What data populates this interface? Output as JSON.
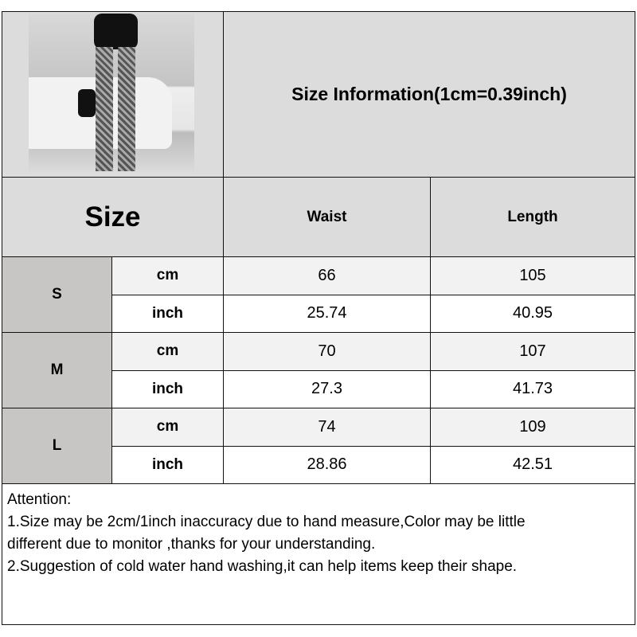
{
  "title": "Size Information(1cm=0.39inch)",
  "header": {
    "size": "Size",
    "waist": "Waist",
    "length": "Length"
  },
  "sizes": [
    {
      "label": "S",
      "cm": {
        "unit": "cm",
        "waist": "66",
        "length": "105"
      },
      "inch": {
        "unit": "inch",
        "waist": "25.74",
        "length": "40.95"
      }
    },
    {
      "label": "M",
      "cm": {
        "unit": "cm",
        "waist": "70",
        "length": "107"
      },
      "inch": {
        "unit": "inch",
        "waist": "27.3",
        "length": "41.73"
      }
    },
    {
      "label": "L",
      "cm": {
        "unit": "cm",
        "waist": "74",
        "length": "109"
      },
      "inch": {
        "unit": "inch",
        "waist": "28.86",
        "length": "42.51"
      }
    }
  ],
  "attention": {
    "heading": "Attention:",
    "line1a": "1.Size may be 2cm/1inch inaccuracy due to hand measure,Color may be little",
    "line1b": "different due to monitor ,thanks for your understanding.",
    "line2": "2.Suggestion of cold water hand washing,it can help items keep their shape."
  },
  "colors": {
    "header_gray": "#dcdcdc",
    "size_col": "#c8c5c5",
    "cm_row": "#f2f2f2"
  }
}
